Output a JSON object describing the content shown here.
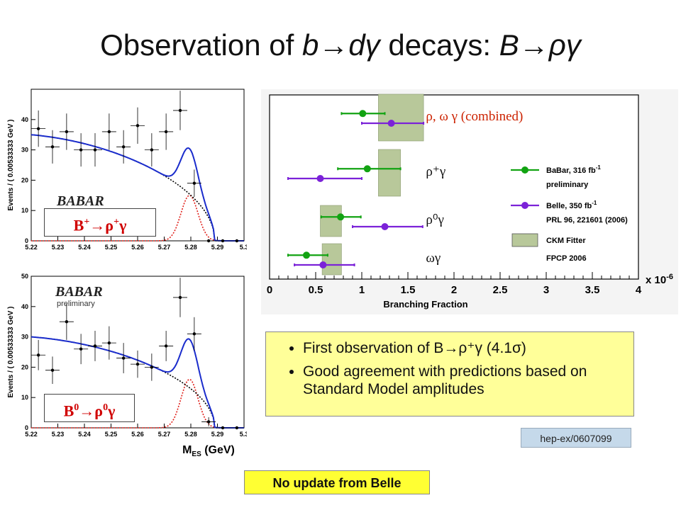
{
  "title": {
    "prefix": "Observation of ",
    "b": "b",
    "arrow": "→",
    "d": "d",
    "gamma": "γ",
    "middle": " decays: ",
    "B": "B",
    "rho": "ρ"
  },
  "colors": {
    "babar": "#12a312",
    "belle": "#7b22d8",
    "ckm": "#b8c89a",
    "fit_total": "#1a2ccc",
    "fit_signal": "#e0201a",
    "fit_bkg": "#000000"
  },
  "bullets": [
    {
      "text": "First observation of B",
      "suffix": "ρ⁺γ (4.1σ)"
    },
    {
      "text": "Good agreement with predictions based on Standard Model amplitudes"
    }
  ],
  "reference": "hep-ex/0607099",
  "note": "No update from Belle",
  "charts_meta": {
    "top_label": {
      "B": "B",
      "sup1": "+",
      "arrow": "→",
      "rho": "ρ",
      "sup2": "+",
      "gamma": "γ"
    },
    "bottom_label": {
      "B": "B",
      "sup1": "0",
      "arrow": "→",
      "rho": "ρ",
      "sup2": "0",
      "gamma": "γ"
    },
    "babar_logo": "BABAR",
    "preliminary": "preliminary"
  },
  "chart_data": [
    {
      "id": "mes-rhoplus",
      "type": "scatter",
      "ylabel": "Events / ( 0.00533333 GeV )",
      "xlim": [
        5.22,
        5.3
      ],
      "ylim": [
        0,
        50
      ],
      "xticks": [
        "5.22",
        "5.23",
        "5.24",
        "5.25",
        "5.26",
        "5.27",
        "5.28",
        "5.29",
        "5.3"
      ],
      "yticks": [
        "0",
        "10",
        "20",
        "30",
        "40"
      ],
      "points": [
        {
          "x": 5.2227,
          "y": 37,
          "ey": 6
        },
        {
          "x": 5.228,
          "y": 31,
          "ey": 5.5
        },
        {
          "x": 5.2333,
          "y": 36,
          "ey": 6
        },
        {
          "x": 5.2387,
          "y": 30,
          "ey": 5.5
        },
        {
          "x": 5.244,
          "y": 30,
          "ey": 5.5
        },
        {
          "x": 5.2493,
          "y": 36,
          "ey": 6
        },
        {
          "x": 5.2547,
          "y": 31,
          "ey": 5.5
        },
        {
          "x": 5.26,
          "y": 38,
          "ey": 6
        },
        {
          "x": 5.2653,
          "y": 30,
          "ey": 5.5
        },
        {
          "x": 5.2707,
          "y": 36,
          "ey": 6
        },
        {
          "x": 5.276,
          "y": 43,
          "ey": 6.5
        },
        {
          "x": 5.2813,
          "y": 19,
          "ey": 4.5
        },
        {
          "x": 5.2867,
          "y": 0,
          "ey": 0
        },
        {
          "x": 5.292,
          "y": 0,
          "ey": 0
        },
        {
          "x": 5.2973,
          "y": 0,
          "ey": 0
        }
      ],
      "total_fit": {
        "bkg_start": 35,
        "sig_peak": 15,
        "cutoff": 5.289
      },
      "series": [
        {
          "values": []
        },
        {
          "values": []
        },
        {
          "values": []
        }
      ]
    },
    {
      "id": "mes-rhozero",
      "type": "scatter",
      "ylabel": "Events / ( 0.00533333 GeV )",
      "xlabel": "M_ES (GeV)",
      "xlim": [
        5.22,
        5.3
      ],
      "ylim": [
        0,
        50
      ],
      "xticks": [
        "5.22",
        "5.23",
        "5.24",
        "5.25",
        "5.26",
        "5.27",
        "5.28",
        "5.29",
        "5.3"
      ],
      "yticks": [
        "0",
        "10",
        "20",
        "30",
        "40",
        "50"
      ],
      "points": [
        {
          "x": 5.2227,
          "y": 24,
          "ey": 5
        },
        {
          "x": 5.228,
          "y": 19,
          "ey": 4.5
        },
        {
          "x": 5.2333,
          "y": 35,
          "ey": 6
        },
        {
          "x": 5.2387,
          "y": 26,
          "ey": 5
        },
        {
          "x": 5.244,
          "y": 27,
          "ey": 5
        },
        {
          "x": 5.2493,
          "y": 28,
          "ey": 5.5
        },
        {
          "x": 5.2547,
          "y": 23,
          "ey": 5
        },
        {
          "x": 5.26,
          "y": 21,
          "ey": 4.5
        },
        {
          "x": 5.2653,
          "y": 20,
          "ey": 4.5
        },
        {
          "x": 5.2707,
          "y": 27,
          "ey": 5
        },
        {
          "x": 5.276,
          "y": 43,
          "ey": 6.5
        },
        {
          "x": 5.2813,
          "y": 31,
          "ey": 5.5
        },
        {
          "x": 5.2867,
          "y": 2,
          "ey": 1.5
        },
        {
          "x": 5.292,
          "y": 0,
          "ey": 0
        },
        {
          "x": 5.2973,
          "y": 0,
          "ey": 0
        }
      ],
      "total_fit": {
        "bkg_start": 30,
        "sig_peak": 16,
        "cutoff": 5.289
      },
      "series": [
        {
          "values": []
        },
        {
          "values": []
        },
        {
          "values": []
        }
      ]
    },
    {
      "id": "branching-fractions",
      "type": "scatter",
      "xlabel": "Branching Fraction",
      "xlim": [
        0,
        4
      ],
      "multiplier": "x 10",
      "multiplier_exp": "-6",
      "xticks": [
        "0",
        "0.5",
        "1",
        "1.5",
        "2",
        "2.5",
        "3",
        "3.5",
        "4"
      ],
      "rows": [
        {
          "label": "ρ, ω γ (combined)",
          "babar": {
            "v": 1.01,
            "lo": 0.78,
            "hi": 1.25
          },
          "belle": {
            "v": 1.32,
            "lo": 1.0,
            "hi": 1.67
          },
          "ckm": [
            1.18,
            1.67
          ]
        },
        {
          "label": "ρ⁺γ",
          "babar": {
            "v": 1.06,
            "lo": 0.74,
            "hi": 1.42
          },
          "belle": {
            "v": 0.55,
            "lo": 0.2,
            "hi": 1.0
          },
          "ckm": [
            1.18,
            1.42
          ]
        },
        {
          "label": "ρ⁰γ",
          "babar": {
            "v": 0.77,
            "lo": 0.56,
            "hi": 0.99
          },
          "belle": {
            "v": 1.25,
            "lo": 0.9,
            "hi": 1.66
          },
          "ckm": [
            0.55,
            0.78
          ]
        },
        {
          "label": "ωγ",
          "babar": {
            "v": 0.4,
            "lo": 0.2,
            "hi": 0.63
          },
          "belle": {
            "v": 0.58,
            "lo": 0.27,
            "hi": 0.92
          },
          "ckm": [
            0.57,
            0.78
          ]
        }
      ],
      "legend": {
        "babar_name": "BaBar, 316 fb",
        "babar_exp": "-1",
        "babar_sub": "preliminary",
        "belle_name": "Belle, 350 fb",
        "belle_exp": "-1",
        "belle_sub": "PRL 96, 221601 (2006)",
        "ckm_name": "CKM Fitter",
        "ckm_sub": "FPCP 2006"
      }
    }
  ]
}
